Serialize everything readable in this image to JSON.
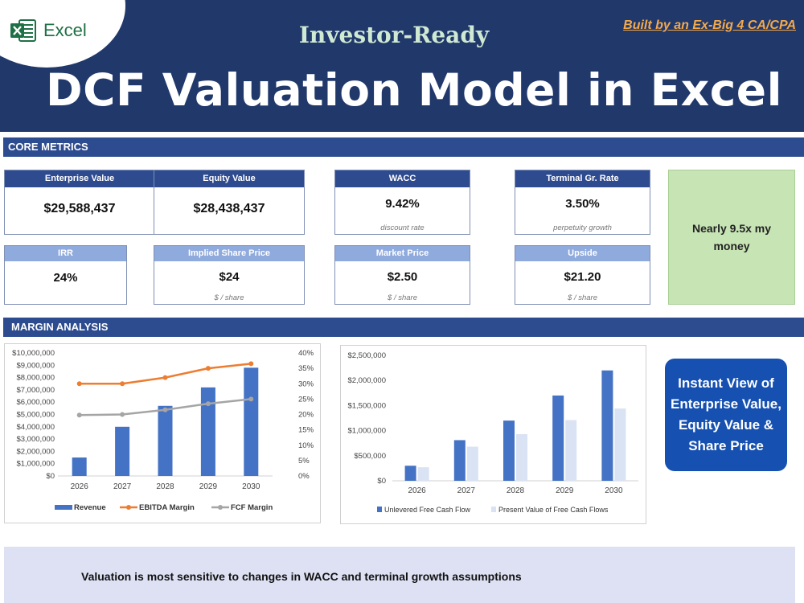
{
  "header": {
    "logo_text": "Excel",
    "subtitle": "Investor-Ready",
    "title": "DCF Valuation Model in Excel",
    "built_by": "Built by an Ex-Big 4 CA/CPA"
  },
  "sections": {
    "core_metrics": "CORE METRICS",
    "margin_analysis": "MARGIN ANALYSIS"
  },
  "metrics": {
    "enterprise_value": {
      "label": "Enterprise Value",
      "value": "$29,588,437"
    },
    "equity_value": {
      "label": "Equity Value",
      "value": "$28,438,437"
    },
    "wacc": {
      "label": "WACC",
      "value": "9.42%",
      "note": "discount rate"
    },
    "terminal_growth": {
      "label": "Terminal Gr. Rate",
      "value": "3.50%",
      "note": "perpetuity growth"
    },
    "irr": {
      "label": "IRR",
      "value": "24%"
    },
    "implied_share_price": {
      "label": "Implied Share Price",
      "value": "$24",
      "note": "$ / share"
    },
    "market_price": {
      "label": "Market Price",
      "value": "$2.50",
      "note": "$ / share"
    },
    "upside": {
      "label": "Upside",
      "value": "$21.20",
      "note": "$ / share"
    }
  },
  "green_note": "Nearly 9.5x my money",
  "callout": "Instant View of Enterprise Value, Equity Value & Share Price",
  "footer": "Valuation is most sensitive to changes in WACC and terminal growth assumptions",
  "colors": {
    "header_bg": "#21386b",
    "section_bar": "#2d4c8f",
    "bar_dark": "#4472c4",
    "bar_light": "#dae3f3",
    "ebitda_line": "#ed7d31",
    "fcf_line": "#a5a5a5",
    "callout_bg": "#1650b0",
    "green_box": "#c7e4b5"
  },
  "chart_data": [
    {
      "type": "bar",
      "categories": [
        "2026",
        "2027",
        "2028",
        "2029",
        "2030"
      ],
      "series": [
        {
          "name": "Revenue",
          "type": "bar",
          "axis": "left",
          "values": [
            1500000,
            4000000,
            5700000,
            7200000,
            8800000
          ]
        },
        {
          "name": "EBITDA Margin",
          "type": "line",
          "axis": "right",
          "values": [
            0.3,
            0.3,
            0.32,
            0.35,
            0.365
          ]
        },
        {
          "name": "FCF Margin",
          "type": "line",
          "axis": "right",
          "values": [
            0.198,
            0.2,
            0.215,
            0.235,
            0.25
          ]
        }
      ],
      "ylim": [
        0,
        10000000
      ],
      "y2lim": [
        0,
        0.4
      ],
      "yticks": [
        "$0",
        "$1,000,000",
        "$2,000,000",
        "$3,000,000",
        "$4,000,000",
        "$5,000,000",
        "$6,000,000",
        "$7,000,000",
        "$8,000,000",
        "$9,000,000",
        "$10,000,000"
      ],
      "y2ticks": [
        "0%",
        "5%",
        "10%",
        "15%",
        "20%",
        "25%",
        "30%",
        "35%",
        "40%"
      ],
      "legend": "bottom"
    },
    {
      "type": "bar",
      "categories": [
        "2026",
        "2027",
        "2028",
        "2029",
        "2030"
      ],
      "series": [
        {
          "name": "Unlevered Free Cash Flow",
          "values": [
            300000,
            810000,
            1200000,
            1700000,
            2200000
          ]
        },
        {
          "name": "Present Value of Free Cash Flows",
          "values": [
            270000,
            680000,
            930000,
            1210000,
            1440000
          ]
        }
      ],
      "ylim": [
        0,
        2500000
      ],
      "yticks": [
        "$0",
        "$500,000",
        "$1,000,000",
        "$1,500,000",
        "$2,000,000",
        "$2,500,000"
      ],
      "legend": "bottom"
    }
  ]
}
